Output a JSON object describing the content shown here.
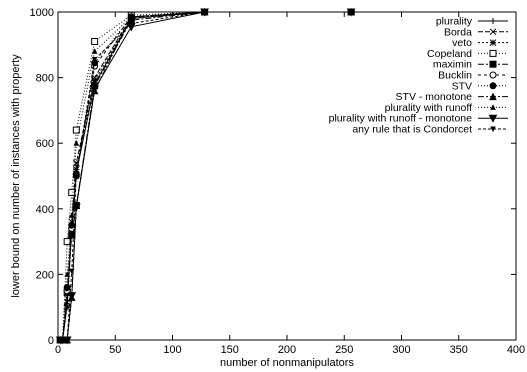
{
  "chart_data": {
    "type": "line",
    "title": "",
    "xlabel": "number of nonmanipulators",
    "ylabel": "lower bound on number of instances with property",
    "xlim": [
      0,
      400
    ],
    "ylim": [
      0,
      1000
    ],
    "xticks": [
      0,
      50,
      100,
      150,
      200,
      250,
      300,
      350,
      400
    ],
    "yticks": [
      0,
      200,
      400,
      600,
      800,
      1000
    ],
    "grid": false,
    "legend": "top-right",
    "x": [
      2,
      4,
      8,
      12,
      16,
      32,
      64,
      128,
      256
    ],
    "series": [
      {
        "name": "plurality",
        "marker": "plus",
        "dash": "",
        "values": [
          0,
          0,
          110,
          340,
          510,
          780,
          980,
          1000,
          1000
        ]
      },
      {
        "name": "Borda",
        "marker": "x",
        "dash": "5,2",
        "values": [
          0,
          0,
          115,
          360,
          540,
          800,
          985,
          1000,
          1000
        ]
      },
      {
        "name": "veto",
        "marker": "star",
        "dash": "2,2",
        "values": [
          0,
          0,
          100,
          330,
          520,
          790,
          982,
          1000,
          1000
        ]
      },
      {
        "name": "Copeland",
        "marker": "square-open",
        "dash": "1,2",
        "values": [
          0,
          0,
          300,
          450,
          640,
          910,
          990,
          1000,
          1000
        ]
      },
      {
        "name": "maximin",
        "marker": "square-filled",
        "dash": "6,2,2,2",
        "values": [
          0,
          0,
          145,
          320,
          410,
          775,
          975,
          1000,
          1000
        ]
      },
      {
        "name": "Bucklin",
        "marker": "circle-open",
        "dash": "3,3",
        "values": [
          0,
          0,
          150,
          340,
          505,
          835,
          985,
          1000,
          1000
        ]
      },
      {
        "name": "STV",
        "marker": "circle-filled",
        "dash": "1,2",
        "values": [
          0,
          0,
          160,
          350,
          500,
          845,
          985,
          1000,
          1000
        ]
      },
      {
        "name": "STV - monotone",
        "marker": "triangle-up",
        "dash": "6,2,2,2",
        "values": [
          0,
          0,
          0,
          130,
          410,
          760,
          985,
          1000,
          1000
        ]
      },
      {
        "name": "plurality with runoff",
        "marker": "triangle-up-small",
        "dash": "1,2",
        "values": [
          0,
          0,
          200,
          380,
          600,
          880,
          985,
          1000,
          1000
        ]
      },
      {
        "name": "plurality with runoff - monotone",
        "marker": "triangle-down",
        "dash": "",
        "values": [
          0,
          0,
          0,
          135,
          405,
          765,
          955,
          1000,
          1000
        ]
      },
      {
        "name": "any rule that is Condorcet",
        "marker": "triangle-down-small",
        "dash": "3,2",
        "values": [
          0,
          0,
          0,
          210,
          505,
          855,
          965,
          1000,
          1000
        ]
      }
    ]
  }
}
